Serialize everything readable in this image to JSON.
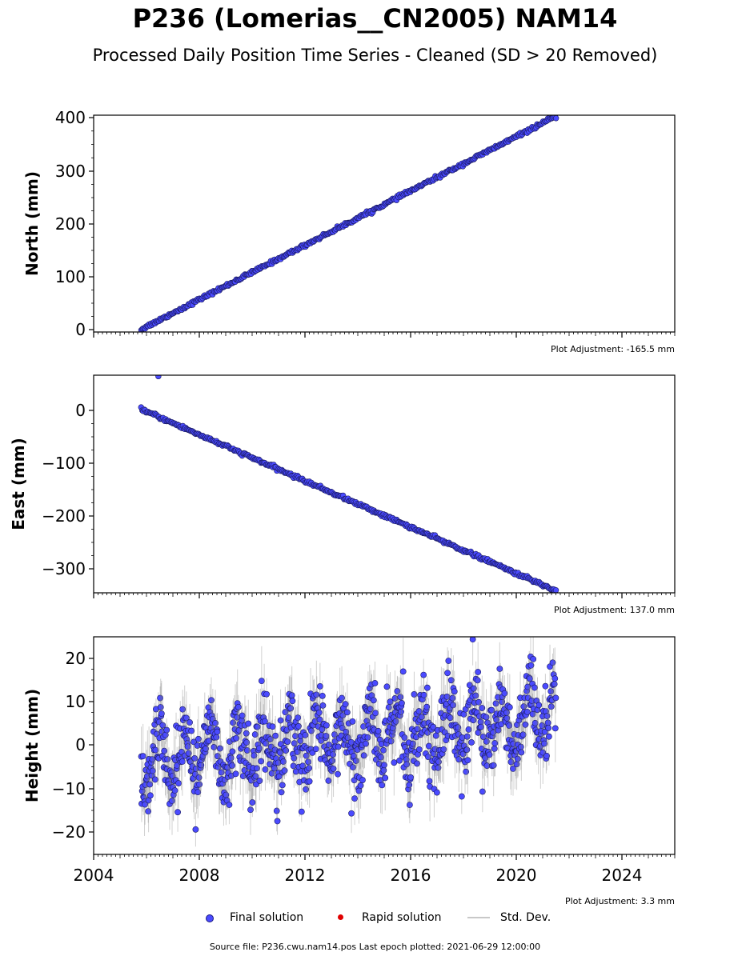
{
  "header": {
    "title": "P236 (Lomerias__CN2005) NAM14",
    "subtitle": "Processed Daily Position Time Series - Cleaned (SD > 20 Removed)"
  },
  "legend": {
    "final_label": "Final solution",
    "rapid_label": "Rapid solution",
    "std_label": "Std. Dev."
  },
  "footer": {
    "source_text": "Source file: P236.cwu.nam14.pos  Last epoch plotted: 2021-06-29 12:00:00"
  },
  "colors": {
    "final_fill": "#4a4aff",
    "final_edge": "#1a1a60",
    "rapid": "#e00000",
    "std_dev": "#c8c8c8"
  },
  "chart_data": [
    {
      "type": "scatter",
      "ylabel": "North (mm)",
      "adjustment": "Plot Adjustment: -165.5 mm",
      "xlim": [
        2004,
        2026
      ],
      "ylim": [
        -5,
        405
      ],
      "yticks": [
        "0",
        "100",
        "200",
        "300",
        "400"
      ],
      "xticks": [],
      "data_range": [
        2005.8,
        2021.5
      ],
      "trend": {
        "x": [
          2005.8,
          2021.5
        ],
        "y": [
          0,
          403
        ]
      },
      "noise_sd": 1.5,
      "outliers": []
    },
    {
      "type": "scatter",
      "ylabel": "East (mm)",
      "adjustment": "Plot Adjustment: 137.0 mm",
      "xlim": [
        2004,
        2026
      ],
      "ylim": [
        -345,
        64
      ],
      "yticks": [
        "0",
        "−100",
        "−200",
        "−300"
      ],
      "xticks": [],
      "data_range": [
        2005.8,
        2021.5
      ],
      "trend": {
        "x": [
          2005.8,
          2021.5
        ],
        "y": [
          0,
          -341
        ]
      },
      "noise_sd": 1.5,
      "outliers": [
        {
          "x": 2006.45,
          "y": 62
        }
      ]
    },
    {
      "type": "scatter",
      "ylabel": "Height (mm)",
      "adjustment": "Plot Adjustment: 3.3 mm",
      "xlim": [
        2004,
        2026
      ],
      "ylim": [
        -25,
        25
      ],
      "yticks": [
        "20",
        "10",
        "0",
        "−10",
        "−20"
      ],
      "xticks": [
        "2004",
        "2008",
        "2012",
        "2016",
        "2020",
        "2024"
      ],
      "data_range": [
        2005.8,
        2021.5
      ],
      "trend": {
        "x": [
          2005.8,
          2021.5
        ],
        "y": [
          -3,
          6
        ]
      },
      "noise_sd": 4.5,
      "seasonal_amplitude": 6,
      "outliers": []
    }
  ]
}
